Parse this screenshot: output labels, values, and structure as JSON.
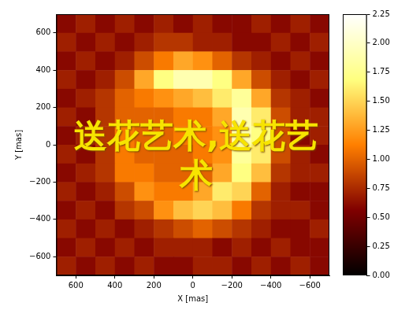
{
  "chart_data": {
    "type": "heatmap",
    "xlabel": "X [mas]",
    "ylabel": "Y [mas]",
    "xlim": [
      700,
      -700
    ],
    "ylim": [
      -700,
      700
    ],
    "xticks": [
      600,
      400,
      200,
      0,
      {
        "value": -200,
        "label": "−200"
      },
      {
        "value": -400,
        "label": "−400"
      },
      {
        "value": -600,
        "label": "−600"
      }
    ],
    "yticks": [
      {
        "value": -600,
        "label": "−600"
      },
      {
        "value": -400,
        "label": "−400"
      },
      {
        "value": -200,
        "label": "−200"
      },
      0,
      200,
      400,
      600
    ],
    "grid": false,
    "x": [
      650,
      550,
      450,
      350,
      250,
      150,
      50,
      -50,
      -150,
      -250,
      -350,
      -450,
      -550,
      -650
    ],
    "y": [
      650,
      550,
      450,
      350,
      250,
      150,
      50,
      -50,
      -150,
      -250,
      -350,
      -450,
      -550,
      -650
    ],
    "values": [
      [
        0.6,
        0.7,
        0.6,
        0.7,
        0.6,
        0.7,
        0.6,
        0.7,
        0.6,
        0.6,
        0.7,
        0.6,
        0.7,
        0.6
      ],
      [
        0.7,
        0.6,
        0.7,
        0.6,
        0.7,
        0.8,
        0.8,
        0.7,
        0.7,
        0.6,
        0.6,
        0.7,
        0.6,
        0.7
      ],
      [
        0.6,
        0.7,
        0.6,
        0.7,
        0.9,
        1.1,
        1.3,
        1.2,
        1.0,
        0.8,
        0.7,
        0.6,
        0.7,
        0.6
      ],
      [
        0.7,
        0.6,
        0.7,
        0.9,
        1.3,
        1.7,
        1.9,
        1.9,
        1.7,
        1.3,
        0.9,
        0.7,
        0.6,
        0.7
      ],
      [
        0.6,
        0.7,
        0.8,
        1.0,
        1.1,
        1.2,
        1.3,
        1.4,
        1.6,
        1.8,
        1.3,
        0.8,
        0.7,
        0.6
      ],
      [
        0.7,
        0.6,
        0.8,
        1.0,
        1.0,
        1.0,
        1.1,
        1.1,
        1.3,
        1.9,
        1.6,
        0.9,
        0.7,
        0.7
      ],
      [
        0.6,
        0.7,
        0.8,
        1.1,
        1.0,
        1.0,
        1.1,
        1.1,
        1.2,
        1.9,
        1.7,
        0.9,
        0.6,
        0.7
      ],
      [
        0.7,
        0.6,
        0.8,
        1.1,
        1.0,
        1.0,
        1.0,
        1.1,
        1.2,
        1.8,
        1.6,
        0.9,
        0.7,
        0.6
      ],
      [
        0.6,
        0.7,
        0.8,
        1.1,
        1.1,
        1.0,
        1.0,
        1.0,
        1.3,
        1.7,
        1.4,
        0.8,
        0.7,
        0.7
      ],
      [
        0.7,
        0.6,
        0.7,
        0.9,
        1.2,
        1.1,
        1.1,
        1.3,
        1.6,
        1.5,
        1.0,
        0.7,
        0.6,
        0.6
      ],
      [
        0.6,
        0.7,
        0.6,
        0.8,
        0.9,
        1.2,
        1.4,
        1.5,
        1.4,
        1.1,
        0.8,
        0.7,
        0.7,
        0.6
      ],
      [
        0.7,
        0.6,
        0.7,
        0.6,
        0.7,
        0.8,
        0.9,
        1.0,
        0.9,
        0.8,
        0.7,
        0.6,
        0.6,
        0.7
      ],
      [
        0.6,
        0.7,
        0.6,
        0.7,
        0.6,
        0.7,
        0.7,
        0.7,
        0.6,
        0.7,
        0.6,
        0.7,
        0.6,
        0.6
      ],
      [
        0.7,
        0.6,
        0.7,
        0.6,
        0.7,
        0.6,
        0.6,
        0.7,
        0.7,
        0.6,
        0.7,
        0.6,
        0.7,
        0.6
      ]
    ],
    "colorbar": {
      "range": [
        0,
        2.25
      ],
      "ticks": [
        {
          "value": 0,
          "label": "0.00"
        },
        0.25,
        {
          "value": 0.5,
          "label": "0.50"
        },
        0.75,
        {
          "value": 1,
          "label": "1.00"
        },
        1.25,
        {
          "value": 1.5,
          "label": "1.50"
        },
        1.75,
        {
          "value": 2,
          "label": "2.00"
        },
        2.25
      ]
    },
    "annotations": [
      "送花艺术,送花艺术"
    ]
  }
}
